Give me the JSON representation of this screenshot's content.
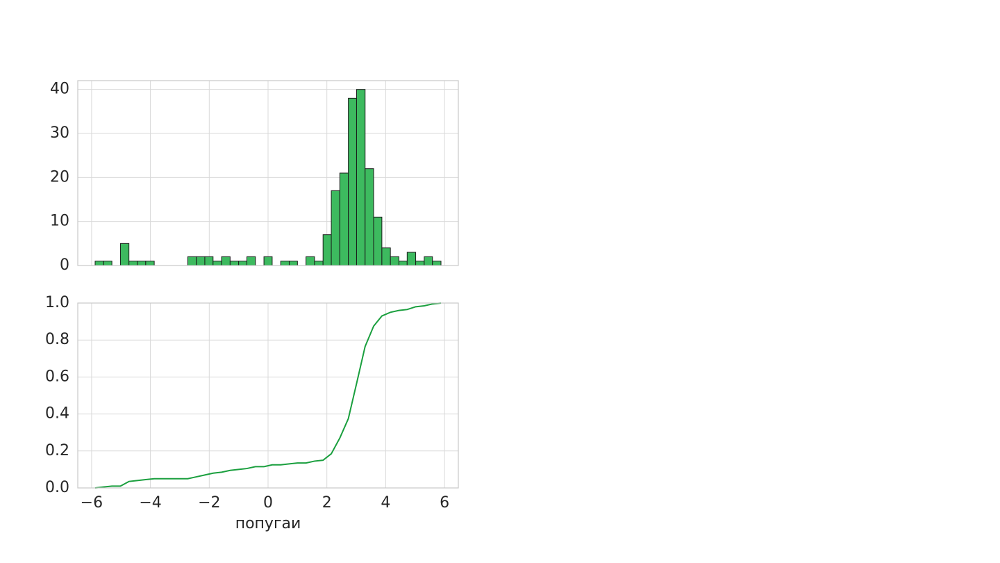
{
  "chart_data": [
    {
      "type": "histogram",
      "color": "#3dba5f",
      "edgecolor": "#1a1a1a",
      "grid": true,
      "bins": [
        -5.88,
        -5.59,
        -5.31,
        -5.02,
        -4.73,
        -4.45,
        -4.16,
        -3.87,
        -3.59,
        -3.3,
        -3.01,
        -2.73,
        -2.44,
        -2.15,
        -1.87,
        -1.58,
        -1.29,
        -1.0,
        -0.72,
        -0.43,
        -0.14,
        0.14,
        0.43,
        0.72,
        1.0,
        1.29,
        1.58,
        1.87,
        2.15,
        2.44,
        2.73,
        3.01,
        3.3,
        3.59,
        3.87,
        4.16,
        4.45,
        4.73,
        5.02,
        5.31,
        5.59,
        5.88
      ],
      "values": [
        1,
        1,
        0,
        5,
        1,
        1,
        1,
        0,
        0,
        0,
        0,
        2,
        2,
        2,
        1,
        2,
        1,
        1,
        2,
        0,
        2,
        0,
        1,
        1,
        0,
        2,
        1,
        7,
        17,
        21,
        38,
        40,
        22,
        11,
        4,
        2,
        1,
        3,
        1,
        2,
        1
      ],
      "xlim": [
        -6.47,
        6.47
      ],
      "ylim": [
        0,
        42
      ],
      "yticks": [
        0,
        10,
        20,
        30,
        40
      ]
    },
    {
      "type": "line",
      "color": "#1a9f3e",
      "grid": true,
      "xlabel": "попугаи",
      "x": [
        -5.88,
        -5.59,
        -5.31,
        -5.02,
        -4.73,
        -4.45,
        -4.16,
        -3.87,
        -3.59,
        -3.3,
        -3.01,
        -2.73,
        -2.44,
        -2.15,
        -1.87,
        -1.58,
        -1.29,
        -1.0,
        -0.72,
        -0.43,
        -0.14,
        0.14,
        0.43,
        0.72,
        1.0,
        1.29,
        1.58,
        1.87,
        2.15,
        2.44,
        2.73,
        3.01,
        3.3,
        3.59,
        3.87,
        4.16,
        4.45,
        4.73,
        5.02,
        5.31,
        5.59,
        5.88
      ],
      "values": [
        0,
        0.005,
        0.01,
        0.01,
        0.035,
        0.04,
        0.045,
        0.05,
        0.05,
        0.05,
        0.05,
        0.05,
        0.06,
        0.07,
        0.08,
        0.085,
        0.095,
        0.1,
        0.105,
        0.115,
        0.115,
        0.125,
        0.125,
        0.13,
        0.135,
        0.135,
        0.145,
        0.15,
        0.185,
        0.27,
        0.375,
        0.565,
        0.765,
        0.875,
        0.93,
        0.95,
        0.96,
        0.965,
        0.98,
        0.985,
        0.995,
        1.0
      ],
      "xlim": [
        -6.47,
        6.47
      ],
      "ylim": [
        0,
        1
      ],
      "xticks": [
        {
          "value": -6,
          "label": "−6"
        },
        {
          "value": -4,
          "label": "−4"
        },
        {
          "value": -2,
          "label": "−2"
        },
        0,
        2,
        4,
        6
      ],
      "yticks": [
        {
          "value": 0,
          "label": "0.0"
        },
        0.2,
        0.4,
        0.6,
        0.8,
        {
          "value": 1,
          "label": "1.0"
        }
      ]
    }
  ]
}
